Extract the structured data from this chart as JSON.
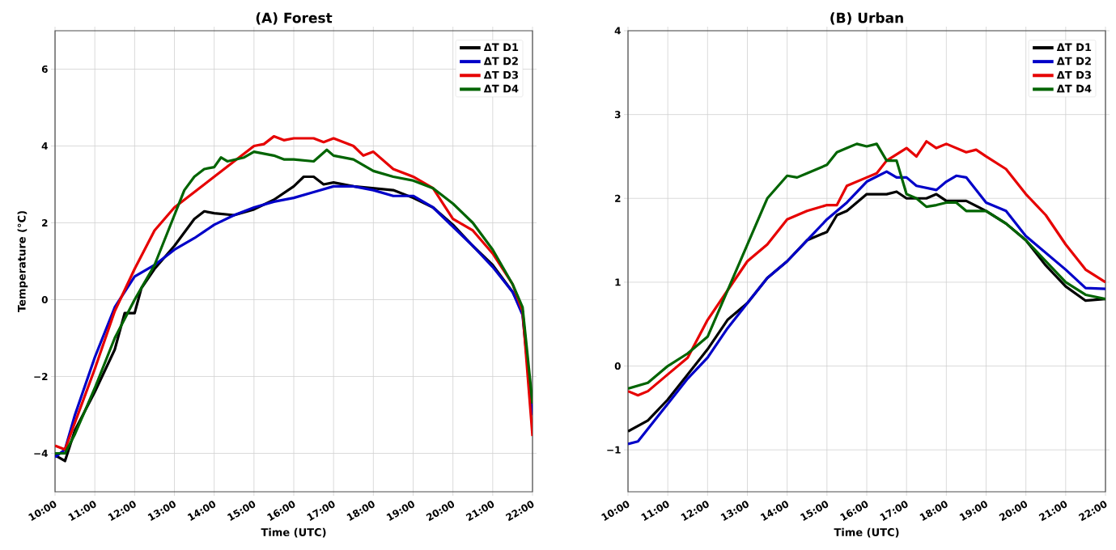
{
  "chart_data": [
    {
      "type": "line",
      "title": "(A) Forest",
      "xlabel": "Time (UTC)",
      "ylabel": "Temperature (°C)",
      "xlim": [
        10,
        22
      ],
      "ylim": [
        -5,
        7
      ],
      "xticks": [
        {
          "value": 10,
          "label": "10:00"
        },
        {
          "value": 11,
          "label": "11:00"
        },
        {
          "value": 12,
          "label": "12:00"
        },
        {
          "value": 13,
          "label": "13:00"
        },
        {
          "value": 14,
          "label": "14:00"
        },
        {
          "value": 15,
          "label": "15:00"
        },
        {
          "value": 16,
          "label": "16:00"
        },
        {
          "value": 17,
          "label": "17:00"
        },
        {
          "value": 18,
          "label": "18:00"
        },
        {
          "value": 19,
          "label": "19:00"
        },
        {
          "value": 20,
          "label": "20:00"
        },
        {
          "value": 21,
          "label": "21:00"
        },
        {
          "value": 22,
          "label": "22:00"
        }
      ],
      "yticks": [
        {
          "value": -4,
          "label": "−4"
        },
        {
          "value": -2,
          "label": "−2"
        },
        0,
        2,
        4,
        6
      ],
      "grid": true,
      "legend": "top right",
      "series": [
        {
          "name": "ΔT D1",
          "color": "#000000",
          "x": [
            10,
            10.25,
            10.5,
            11,
            11.5,
            11.75,
            12,
            12.17,
            12.5,
            13,
            13.5,
            13.75,
            14,
            14.5,
            15,
            15.5,
            16,
            16.25,
            16.5,
            16.75,
            17,
            17.5,
            18,
            18.5,
            19,
            19.5,
            20,
            20.5,
            21,
            21.5,
            21.75,
            22
          ],
          "values": [
            -4.05,
            -4.2,
            -3.4,
            -2.4,
            -1.3,
            -0.35,
            -0.35,
            0.3,
            0.8,
            1.4,
            2.1,
            2.3,
            2.25,
            2.2,
            2.35,
            2.6,
            2.95,
            3.2,
            3.2,
            3.0,
            3.05,
            2.95,
            2.9,
            2.85,
            2.65,
            2.4,
            1.95,
            1.4,
            0.9,
            0.2,
            -0.3,
            -3.0
          ]
        },
        {
          "name": "ΔT D2",
          "color": "#0000c8",
          "x": [
            10,
            10.25,
            10.5,
            11,
            11.5,
            12,
            12.5,
            13,
            13.5,
            14,
            14.5,
            15,
            15.5,
            16,
            16.5,
            17,
            17.5,
            18,
            18.5,
            19,
            19.5,
            20,
            20.5,
            21,
            21.5,
            21.75,
            22
          ],
          "values": [
            -4.1,
            -3.9,
            -3.0,
            -1.5,
            -0.2,
            0.6,
            0.9,
            1.3,
            1.6,
            1.95,
            2.2,
            2.4,
            2.55,
            2.65,
            2.8,
            2.95,
            2.95,
            2.85,
            2.7,
            2.7,
            2.4,
            1.9,
            1.4,
            0.85,
            0.2,
            -0.4,
            -3.0
          ]
        },
        {
          "name": "ΔT D3",
          "color": "#e60000",
          "x": [
            10,
            10.25,
            10.5,
            11,
            11.5,
            12,
            12.5,
            13,
            13.5,
            14,
            14.5,
            15,
            15.25,
            15.5,
            15.75,
            16,
            16.5,
            16.75,
            17,
            17.5,
            17.75,
            18,
            18.5,
            19,
            19.5,
            20,
            20.5,
            21,
            21.5,
            21.75,
            22
          ],
          "values": [
            -3.8,
            -3.9,
            -3.2,
            -1.8,
            -0.3,
            0.8,
            1.8,
            2.4,
            2.8,
            3.2,
            3.6,
            4.0,
            4.05,
            4.25,
            4.15,
            4.2,
            4.2,
            4.1,
            4.2,
            4.0,
            3.75,
            3.85,
            3.4,
            3.2,
            2.9,
            2.1,
            1.8,
            1.2,
            0.4,
            -0.3,
            -3.55
          ]
        },
        {
          "name": "ΔT D4",
          "color": "#006400",
          "x": [
            10,
            10.25,
            10.5,
            11,
            11.5,
            12,
            12.5,
            13,
            13.25,
            13.5,
            13.75,
            14,
            14.17,
            14.33,
            14.75,
            15,
            15.5,
            15.75,
            16,
            16.5,
            16.83,
            17,
            17.5,
            18,
            18.5,
            19,
            19.5,
            20,
            20.5,
            21,
            21.5,
            21.75,
            22
          ],
          "values": [
            -4.0,
            -4.0,
            -3.5,
            -2.3,
            -1.0,
            0.0,
            0.9,
            2.2,
            2.85,
            3.2,
            3.4,
            3.45,
            3.7,
            3.6,
            3.7,
            3.85,
            3.75,
            3.65,
            3.65,
            3.6,
            3.9,
            3.75,
            3.65,
            3.35,
            3.2,
            3.1,
            2.9,
            2.5,
            2.0,
            1.3,
            0.4,
            -0.2,
            -2.7
          ]
        }
      ]
    },
    {
      "type": "line",
      "title": "(B) Urban",
      "xlabel": "Time (UTC)",
      "xlim": [
        10,
        22
      ],
      "ylim": [
        -1.5,
        4
      ],
      "xticks": [
        {
          "value": 10,
          "label": "10:00"
        },
        {
          "value": 11,
          "label": "11:00"
        },
        {
          "value": 12,
          "label": "12:00"
        },
        {
          "value": 13,
          "label": "13:00"
        },
        {
          "value": 14,
          "label": "14:00"
        },
        {
          "value": 15,
          "label": "15:00"
        },
        {
          "value": 16,
          "label": "16:00"
        },
        {
          "value": 17,
          "label": "17:00"
        },
        {
          "value": 18,
          "label": "18:00"
        },
        {
          "value": 19,
          "label": "19:00"
        },
        {
          "value": 20,
          "label": "20:00"
        },
        {
          "value": 21,
          "label": "21:00"
        },
        {
          "value": 22,
          "label": "22:00"
        }
      ],
      "yticks": [
        {
          "value": -1,
          "label": "−1"
        },
        0,
        1,
        2,
        3,
        4
      ],
      "grid": true,
      "legend": "top right",
      "series": [
        {
          "name": "ΔT D1",
          "color": "#000000",
          "x": [
            10,
            10.5,
            11,
            11.5,
            12,
            12.5,
            13,
            13.5,
            14,
            14.5,
            15,
            15.25,
            15.5,
            16,
            16.5,
            16.75,
            17,
            17.5,
            17.75,
            18,
            18.5,
            19,
            19.5,
            20,
            20.5,
            21,
            21.5,
            22
          ],
          "values": [
            -0.78,
            -0.65,
            -0.4,
            -0.1,
            0.2,
            0.55,
            0.75,
            1.05,
            1.25,
            1.5,
            1.6,
            1.8,
            1.85,
            2.05,
            2.05,
            2.08,
            2.0,
            2.0,
            2.05,
            1.97,
            1.97,
            1.85,
            1.7,
            1.5,
            1.2,
            0.95,
            0.78,
            0.8
          ]
        },
        {
          "name": "ΔT D2",
          "color": "#0000c8",
          "x": [
            10,
            10.25,
            10.5,
            11,
            11.5,
            12,
            12.5,
            13,
            13.5,
            14,
            14.5,
            15,
            15.5,
            16,
            16.5,
            16.75,
            17,
            17.25,
            17.75,
            18,
            18.25,
            18.5,
            19,
            19.5,
            20,
            20.5,
            21,
            21.5,
            22
          ],
          "values": [
            -0.93,
            -0.9,
            -0.75,
            -0.45,
            -0.15,
            0.1,
            0.45,
            0.75,
            1.05,
            1.25,
            1.5,
            1.75,
            1.95,
            2.2,
            2.32,
            2.25,
            2.25,
            2.15,
            2.1,
            2.2,
            2.27,
            2.25,
            1.95,
            1.85,
            1.55,
            1.35,
            1.15,
            0.93,
            0.92
          ]
        },
        {
          "name": "ΔT D3",
          "color": "#e60000",
          "x": [
            10,
            10.25,
            10.5,
            11,
            11.5,
            12,
            12.5,
            13,
            13.5,
            14,
            14.5,
            15,
            15.25,
            15.5,
            16,
            16.25,
            16.5,
            17,
            17.25,
            17.5,
            17.75,
            18,
            18.5,
            18.75,
            19,
            19.5,
            20,
            20.5,
            21,
            21.5,
            22
          ],
          "values": [
            -0.3,
            -0.35,
            -0.3,
            -0.1,
            0.1,
            0.55,
            0.9,
            1.25,
            1.45,
            1.75,
            1.85,
            1.92,
            1.92,
            2.15,
            2.25,
            2.3,
            2.45,
            2.6,
            2.5,
            2.68,
            2.6,
            2.65,
            2.55,
            2.58,
            2.5,
            2.35,
            2.05,
            1.8,
            1.45,
            1.15,
            1.0
          ]
        },
        {
          "name": "ΔT D4",
          "color": "#006400",
          "x": [
            10,
            10.5,
            11,
            11.5,
            12,
            12.5,
            13,
            13.5,
            14,
            14.25,
            14.5,
            15,
            15.25,
            15.5,
            15.75,
            16,
            16.25,
            16.5,
            16.75,
            17,
            17.25,
            17.5,
            17.75,
            18,
            18.25,
            18.5,
            19,
            19.5,
            20,
            20.5,
            21,
            21.5,
            22
          ],
          "values": [
            -0.27,
            -0.2,
            0.0,
            0.15,
            0.35,
            0.9,
            1.45,
            2.0,
            2.27,
            2.25,
            2.3,
            2.4,
            2.55,
            2.6,
            2.65,
            2.62,
            2.65,
            2.45,
            2.45,
            2.05,
            2.0,
            1.9,
            1.92,
            1.95,
            1.95,
            1.85,
            1.85,
            1.7,
            1.5,
            1.25,
            1.0,
            0.85,
            0.8
          ]
        }
      ]
    }
  ]
}
